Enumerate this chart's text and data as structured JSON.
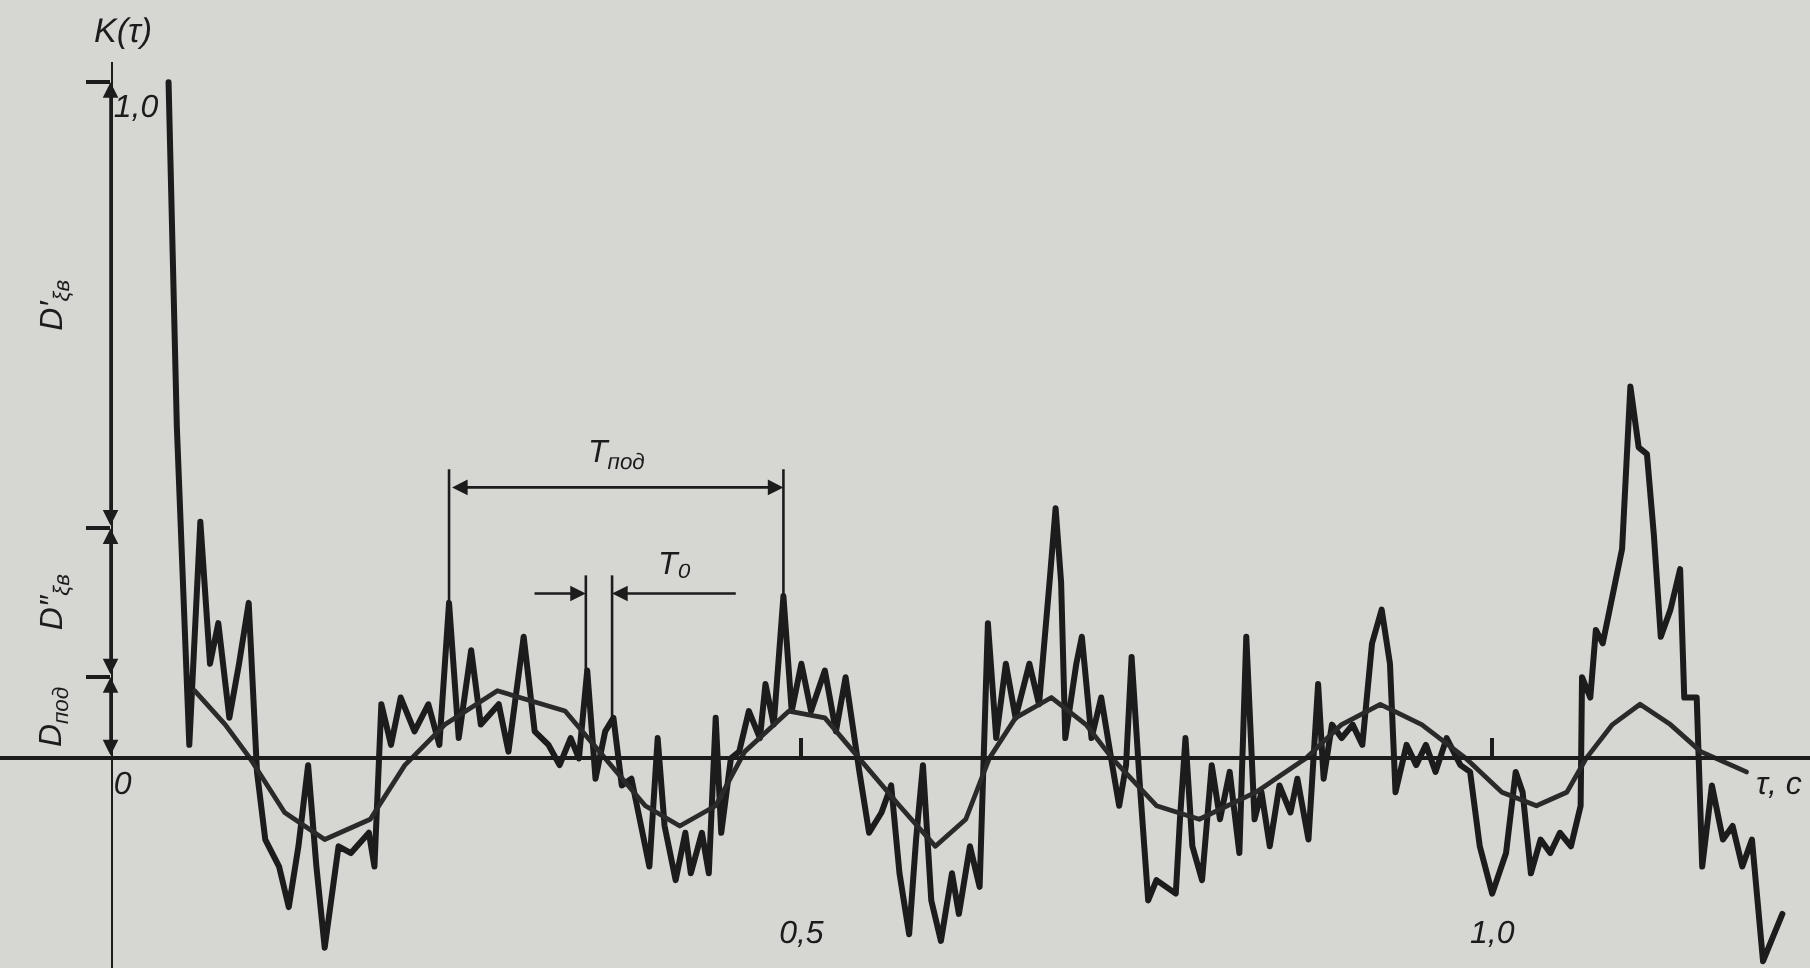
{
  "chart_data": {
    "type": "line",
    "xlabel": "τ, c",
    "ylabel": "K(τ)",
    "xlim": [
      -0.08,
      1.23
    ],
    "ylim": [
      -0.31,
      1.03
    ],
    "xticks": [
      {
        "value": 0.5,
        "label": "0,5"
      },
      {
        "value": 1,
        "label": "1,0"
      }
    ],
    "yticks": [
      {
        "value": 0,
        "label": "0"
      },
      {
        "value": 0.12,
        "label": null
      },
      {
        "value": 0.34,
        "label": null
      },
      {
        "value": 1,
        "label": "1,0"
      }
    ],
    "series": [
      {
        "color": "#1c1c1c",
        "x": [
          0.042,
          0.048,
          0.057,
          0.065,
          0.072,
          0.078,
          0.086,
          0.093,
          0.1,
          0.106,
          0.112,
          0.122,
          0.129,
          0.136,
          0.143,
          0.149,
          0.155,
          0.165,
          0.174,
          0.187,
          0.191,
          0.196,
          0.203,
          0.21,
          0.22,
          0.23,
          0.238,
          0.245,
          0.252,
          0.261,
          0.268,
          0.281,
          0.288,
          0.299,
          0.307,
          0.317,
          0.325,
          0.333,
          0.339,
          0.345,
          0.351,
          0.358,
          0.364,
          0.37,
          0.377,
          0.384,
          0.39,
          0.396,
          0.401,
          0.409,
          0.416,
          0.42,
          0.428,
          0.433,
          0.438,
          0.442,
          0.449,
          0.455,
          0.462,
          0.47,
          0.474,
          0.48,
          0.487,
          0.493,
          0.5,
          0.507,
          0.517,
          0.525,
          0.532,
          0.542,
          0.549,
          0.558,
          0.565,
          0.571,
          0.578,
          0.583,
          0.588,
          0.594,
          0.601,
          0.609,
          0.614,
          0.622,
          0.629,
          0.635,
          0.641,
          0.648,
          0.655,
          0.665,
          0.672,
          0.68,
          0.684,
          0.688,
          0.691,
          0.699,
          0.703,
          0.71,
          0.717,
          0.725,
          0.73,
          0.735,
          0.739,
          0.745,
          0.751,
          0.757,
          0.764,
          0.771,
          0.774,
          0.778,
          0.783,
          0.79,
          0.797,
          0.803,
          0.81,
          0.817,
          0.822,
          0.828,
          0.833,
          0.839,
          0.846,
          0.854,
          0.859,
          0.867,
          0.874,
          0.878,
          0.884,
          0.891,
          0.899,
          0.906,
          0.913,
          0.92,
          0.926,
          0.93,
          0.938,
          0.945,
          0.952,
          0.959,
          0.967,
          0.977,
          0.984,
          0.991,
          1.0,
          1.01,
          1.017,
          1.022,
          1.028,
          1.035,
          1.042,
          1.049,
          1.057,
          1.064,
          1.065,
          1.071,
          1.075,
          1.08,
          1.087,
          1.094,
          1.1,
          1.106,
          1.112,
          1.117,
          1.122,
          1.129,
          1.136,
          1.139,
          1.148,
          1.152,
          1.159,
          1.167,
          1.174,
          1.181,
          1.188,
          1.196,
          1.21
        ],
        "values": [
          1.0,
          0.49,
          0.02,
          0.35,
          0.14,
          0.2,
          0.06,
          0.14,
          0.23,
          -0.02,
          -0.12,
          -0.16,
          -0.22,
          -0.13,
          -0.01,
          -0.16,
          -0.28,
          -0.13,
          -0.14,
          -0.11,
          -0.16,
          0.08,
          0.02,
          0.09,
          0.04,
          0.08,
          0.02,
          0.23,
          0.03,
          0.16,
          0.05,
          0.08,
          0.01,
          0.18,
          0.04,
          0.02,
          -0.01,
          0.03,
          0.0,
          0.13,
          -0.03,
          0.04,
          0.06,
          -0.04,
          -0.03,
          -0.1,
          -0.16,
          0.03,
          -0.1,
          -0.18,
          -0.11,
          -0.17,
          -0.11,
          -0.17,
          0.06,
          -0.11,
          0.0,
          0.01,
          0.07,
          0.03,
          0.11,
          0.05,
          0.24,
          0.07,
          0.14,
          0.07,
          0.13,
          0.04,
          0.12,
          -0.02,
          -0.11,
          -0.08,
          -0.04,
          -0.17,
          -0.26,
          -0.12,
          -0.01,
          -0.21,
          -0.27,
          -0.17,
          -0.23,
          -0.13,
          -0.19,
          0.2,
          0.03,
          0.14,
          0.06,
          0.14,
          0.08,
          0.27,
          0.37,
          0.26,
          0.03,
          0.14,
          0.18,
          0.03,
          0.09,
          -0.01,
          -0.07,
          -0.01,
          0.15,
          -0.04,
          -0.21,
          -0.18,
          -0.19,
          -0.2,
          -0.09,
          0.03,
          -0.13,
          -0.18,
          -0.01,
          -0.09,
          -0.02,
          -0.14,
          0.18,
          -0.09,
          -0.05,
          -0.13,
          -0.04,
          -0.08,
          -0.03,
          -0.12,
          0.11,
          -0.03,
          0.05,
          0.03,
          0.05,
          0.02,
          0.17,
          0.22,
          0.14,
          -0.05,
          0.02,
          -0.01,
          0.02,
          -0.02,
          0.03,
          -0.01,
          -0.02,
          -0.13,
          -0.2,
          -0.14,
          -0.02,
          -0.05,
          -0.17,
          -0.12,
          -0.14,
          -0.11,
          -0.13,
          -0.07,
          0.12,
          0.09,
          0.19,
          0.17,
          0.24,
          0.31,
          0.55,
          0.46,
          0.45,
          0.33,
          0.18,
          0.22,
          0.28,
          0.09,
          0.09,
          -0.16,
          -0.04,
          -0.12,
          -0.1,
          -0.16,
          -0.12,
          -0.3,
          -0.23
        ]
      },
      {
        "color": "#2a2a2a",
        "x": [
          0.061,
          0.083,
          0.101,
          0.126,
          0.155,
          0.188,
          0.213,
          0.242,
          0.28,
          0.329,
          0.358,
          0.387,
          0.412,
          0.438,
          0.459,
          0.491,
          0.517,
          0.546,
          0.571,
          0.597,
          0.619,
          0.636,
          0.655,
          0.681,
          0.706,
          0.725,
          0.757,
          0.788,
          0.829,
          0.865,
          0.891,
          0.919,
          0.949,
          0.981,
          1.007,
          1.032,
          1.054,
          1.068,
          1.087,
          1.107,
          1.129,
          1.151,
          1.184
        ],
        "values": [
          0.1,
          0.05,
          0.0,
          -0.08,
          -0.12,
          -0.09,
          -0.01,
          0.05,
          0.1,
          0.07,
          0.0,
          -0.07,
          -0.1,
          -0.07,
          0.01,
          0.07,
          0.06,
          -0.01,
          -0.07,
          -0.13,
          -0.09,
          0.0,
          0.06,
          0.09,
          0.05,
          0.0,
          -0.07,
          -0.09,
          -0.05,
          0.0,
          0.05,
          0.08,
          0.05,
          0.0,
          -0.05,
          -0.07,
          -0.05,
          0.0,
          0.05,
          0.08,
          0.05,
          0.01,
          -0.02
        ]
      }
    ],
    "ref_lines": [
      {
        "axis": "x",
        "value": 0.245
      },
      {
        "axis": "x",
        "value": 0.487
      },
      {
        "axis": "x",
        "value": 0.344
      },
      {
        "axis": "x",
        "value": 0.363
      }
    ],
    "annotations": [
      "D′$_{ξв}$",
      "D″$_{ξв}$",
      "D$_{под}$",
      "T$_{под}$",
      "T₀"
    ]
  }
}
